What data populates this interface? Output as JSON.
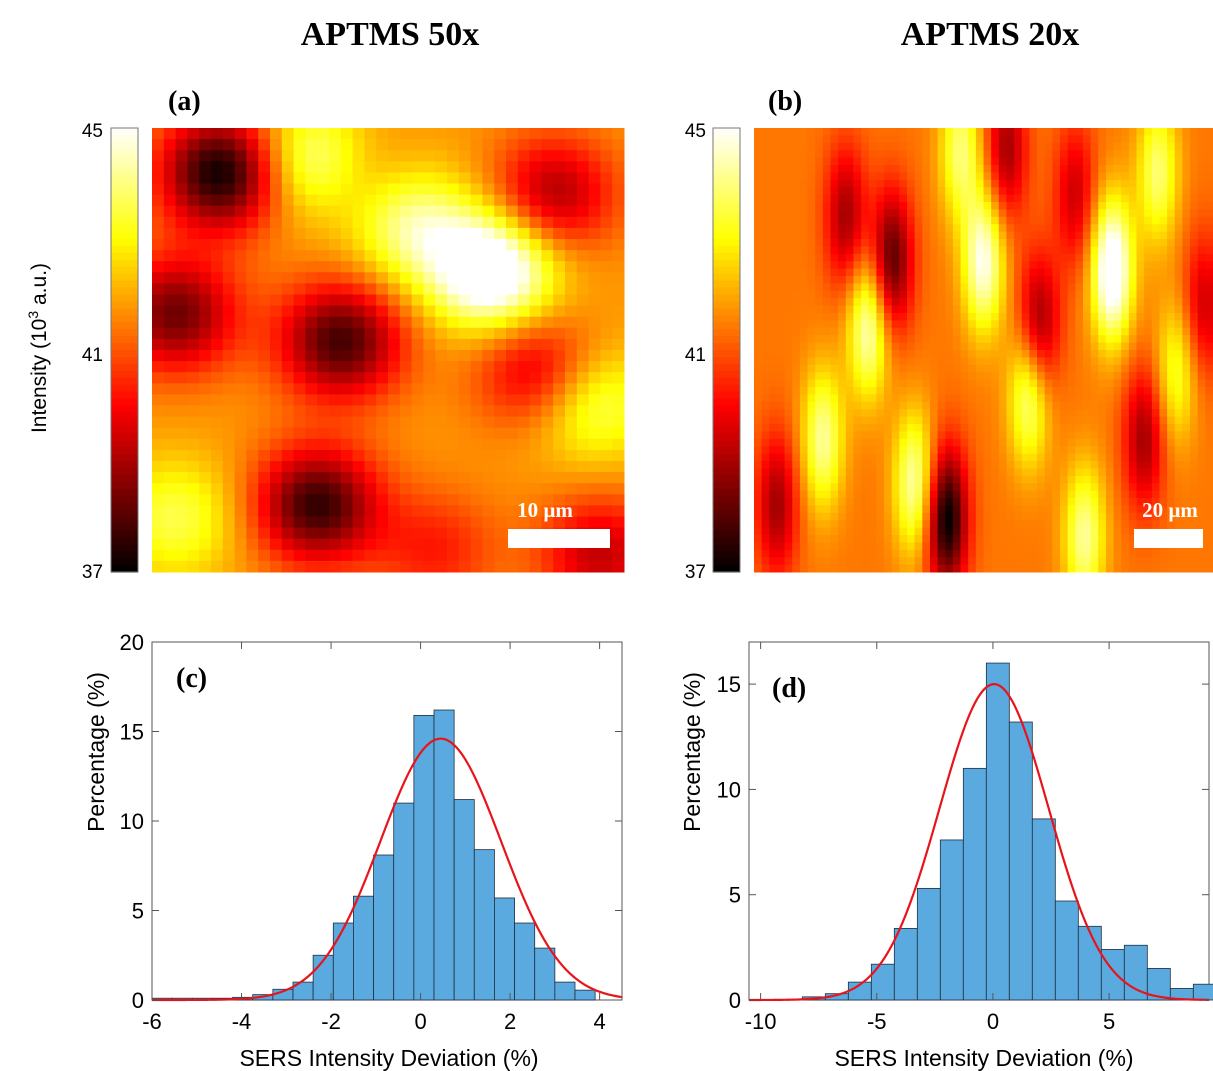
{
  "columns": [
    {
      "title": "APTMS 50x"
    },
    {
      "title": "APTMS 20x"
    }
  ],
  "colors": {
    "bar_fill": "#5aaadf",
    "bar_edge": "#1f2f3f",
    "fit_line": "#e8141b",
    "scalebar": "#ffffff",
    "axis": "#555555"
  },
  "chart_data": [
    {
      "panel": "(a)",
      "type": "heatmap",
      "colormap": "hot",
      "colorbar": {
        "label": "Intensity (10",
        "label_sup": "3",
        "label_tail": " a.u.)",
        "ticks": [
          45,
          41,
          37
        ],
        "range": [
          37,
          45
        ]
      },
      "grid": [
        40,
        40
      ],
      "scalebar": "10 µm",
      "hotspots": [
        {
          "x": 0.72,
          "y": 0.32,
          "v": 4.5
        },
        {
          "x": 0.35,
          "y": 0.08,
          "v": 4.0
        },
        {
          "x": 0.55,
          "y": 0.22,
          "v": 2.4
        },
        {
          "x": 0.93,
          "y": 0.62,
          "v": 2.2
        },
        {
          "x": 0.05,
          "y": 0.88,
          "v": 1.8
        },
        {
          "x": 0.15,
          "y": 0.1,
          "v": -4.8
        },
        {
          "x": 0.4,
          "y": 0.1,
          "v": -2.2
        },
        {
          "x": 0.05,
          "y": 0.42,
          "v": -3.5
        },
        {
          "x": 0.4,
          "y": 0.48,
          "v": -4.0
        },
        {
          "x": 0.85,
          "y": 0.15,
          "v": -2.8
        },
        {
          "x": 0.82,
          "y": 0.55,
          "v": -2.5
        },
        {
          "x": 0.35,
          "y": 0.85,
          "v": -4.2
        },
        {
          "x": 0.95,
          "y": 0.96,
          "v": -2.5
        },
        {
          "x": 0.6,
          "y": 0.95,
          "v": -1.5
        }
      ]
    },
    {
      "panel": "(b)",
      "type": "heatmap",
      "colormap": "hot",
      "colorbar": {
        "ticks": [
          45,
          41,
          37
        ],
        "range": [
          37,
          45
        ]
      },
      "grid": [
        60,
        60
      ],
      "scalebar": "20 µm",
      "hotspots": [
        {
          "x": 0.78,
          "y": 0.32,
          "v": 4.5
        },
        {
          "x": 0.5,
          "y": 0.3,
          "v": 3.5
        },
        {
          "x": 0.25,
          "y": 0.45,
          "v": 3.2
        },
        {
          "x": 0.6,
          "y": 0.6,
          "v": 3.0
        },
        {
          "x": 0.15,
          "y": 0.7,
          "v": 2.8
        },
        {
          "x": 0.35,
          "y": 0.8,
          "v": 3.0
        },
        {
          "x": 0.72,
          "y": 0.92,
          "v": 2.8
        },
        {
          "x": 0.45,
          "y": 0.05,
          "v": 2.5
        },
        {
          "x": 0.92,
          "y": 0.55,
          "v": 2.0
        },
        {
          "x": 0.88,
          "y": 0.1,
          "v": 2.5
        },
        {
          "x": 0.3,
          "y": 0.3,
          "v": -3.5
        },
        {
          "x": 0.62,
          "y": 0.45,
          "v": -3.0
        },
        {
          "x": 0.42,
          "y": 0.88,
          "v": -4.5
        },
        {
          "x": 0.2,
          "y": 0.2,
          "v": -2.5
        },
        {
          "x": 0.05,
          "y": 0.85,
          "v": -2.5
        },
        {
          "x": 0.7,
          "y": 0.15,
          "v": -2.0
        },
        {
          "x": 0.85,
          "y": 0.7,
          "v": -2.5
        },
        {
          "x": 0.55,
          "y": 0.05,
          "v": -2.5
        },
        {
          "x": 0.98,
          "y": 0.4,
          "v": -2.0
        }
      ]
    },
    {
      "panel": "(c)",
      "type": "bar",
      "xlabel": "SERS Intensity Deviation (%)",
      "ylabel": "Percentage (%)",
      "xlim": [
        -6,
        4.5
      ],
      "ylim": [
        0,
        20
      ],
      "xticks": [
        -6,
        -4,
        -2,
        0,
        2,
        4
      ],
      "yticks": [
        0,
        5,
        10,
        15,
        20
      ],
      "bin_width": 0.45,
      "bin_centers": [
        -5.775,
        -5.325,
        -4.875,
        -4.425,
        -3.975,
        -3.525,
        -3.075,
        -2.625,
        -2.175,
        -1.725,
        -1.275,
        -0.825,
        -0.375,
        0.075,
        0.525,
        0.975,
        1.425,
        1.875,
        2.325,
        2.775,
        3.225,
        3.675,
        4.125
      ],
      "values": [
        0.1,
        0.1,
        0.1,
        0.1,
        0.15,
        0.3,
        0.6,
        1.0,
        2.5,
        4.3,
        5.8,
        8.1,
        11.0,
        15.9,
        16.2,
        11.2,
        8.4,
        5.7,
        4.3,
        2.9,
        1.0,
        0.55,
        0.0
      ],
      "fit": {
        "type": "gaussian",
        "amplitude": 14.6,
        "mean": 0.45,
        "sigma": 1.35
      }
    },
    {
      "panel": "(d)",
      "type": "bar",
      "xlabel": "SERS Intensity Deviation (%)",
      "ylabel": "Percentage (%)",
      "xlim": [
        -10.5,
        9.3
      ],
      "ylim": [
        0,
        17
      ],
      "xticks": [
        -10,
        -5,
        0,
        5
      ],
      "yticks": [
        0,
        5,
        10,
        15
      ],
      "bin_width": 0.99,
      "bin_centers": [
        -7.71,
        -6.72,
        -5.73,
        -4.74,
        -3.75,
        -2.76,
        -1.77,
        -0.78,
        0.21,
        1.2,
        2.19,
        3.18,
        4.17,
        5.16,
        6.15,
        7.14,
        8.13,
        9.12
      ],
      "values": [
        0.15,
        0.3,
        0.85,
        1.7,
        3.4,
        5.3,
        7.6,
        11.0,
        16.0,
        13.2,
        8.6,
        4.7,
        3.5,
        2.4,
        2.6,
        1.5,
        0.55,
        0.75
      ],
      "fit": {
        "type": "gaussian",
        "amplitude": 15.0,
        "mean": 0.05,
        "sigma": 2.35
      }
    }
  ]
}
